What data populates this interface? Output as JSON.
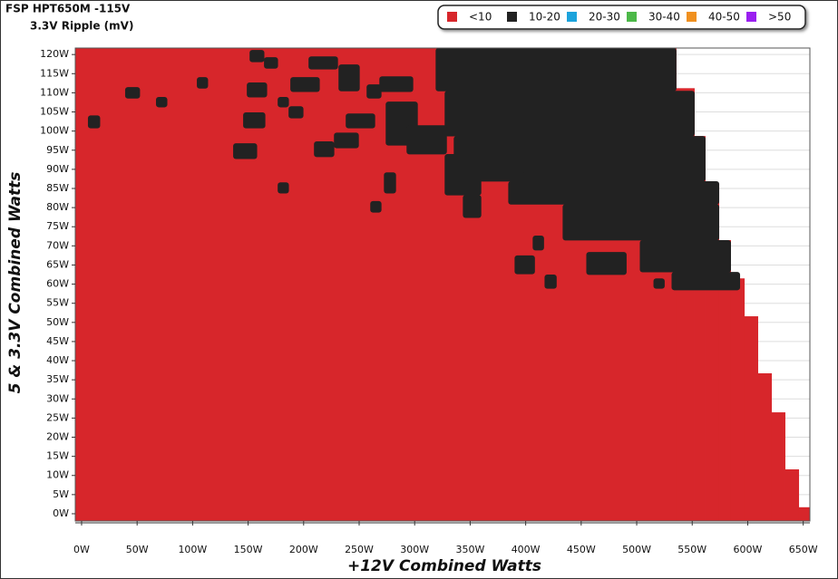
{
  "chart_data": {
    "type": "heatmap",
    "title": "FSP HPT650M -115V",
    "subtitle": "3.3V Ripple (mV)",
    "x_label": "+12V Combined Watts",
    "y_label": "5 & 3.3V Combined Watts",
    "xlim": [
      -5.7,
      656
    ],
    "ylim": [
      -1.9,
      121.7
    ],
    "grid": true,
    "xticks": [
      {
        "value": 0,
        "label": "0W"
      },
      {
        "value": 50,
        "label": "50W"
      },
      {
        "value": 100,
        "label": "100W"
      },
      {
        "value": 150,
        "label": "150W"
      },
      {
        "value": 200,
        "label": "200W"
      },
      {
        "value": 250,
        "label": "250W"
      },
      {
        "value": 300,
        "label": "300W"
      },
      {
        "value": 350,
        "label": "350W"
      },
      {
        "value": 400,
        "label": "400W"
      },
      {
        "value": 450,
        "label": "450W"
      },
      {
        "value": 500,
        "label": "500W"
      },
      {
        "value": 550,
        "label": "550W"
      },
      {
        "value": 600,
        "label": "600W"
      },
      {
        "value": 650,
        "label": "650W"
      }
    ],
    "yticks": [
      {
        "value": 0,
        "label": "0W"
      },
      {
        "value": 5,
        "label": "5W"
      },
      {
        "value": 10,
        "label": "10W"
      },
      {
        "value": 15,
        "label": "15W"
      },
      {
        "value": 20,
        "label": "20W"
      },
      {
        "value": 25,
        "label": "25W"
      },
      {
        "value": 30,
        "label": "30W"
      },
      {
        "value": 35,
        "label": "35W"
      },
      {
        "value": 40,
        "label": "40W"
      },
      {
        "value": 45,
        "label": "45W"
      },
      {
        "value": 50,
        "label": "50W"
      },
      {
        "value": 55,
        "label": "55W"
      },
      {
        "value": 60,
        "label": "60W"
      },
      {
        "value": 65,
        "label": "65W"
      },
      {
        "value": 70,
        "label": "70W"
      },
      {
        "value": 75,
        "label": "75W"
      },
      {
        "value": 80,
        "label": "80W"
      },
      {
        "value": 85,
        "label": "85W"
      },
      {
        "value": 90,
        "label": "90W"
      },
      {
        "value": 95,
        "label": "95W"
      },
      {
        "value": 100,
        "label": "100W"
      },
      {
        "value": 105,
        "label": "105W"
      },
      {
        "value": 110,
        "label": "110W"
      },
      {
        "value": 115,
        "label": "115W"
      },
      {
        "value": 120,
        "label": "120W"
      }
    ],
    "series": [
      {
        "name": "<10",
        "color": "#d7262b",
        "cells": [
          [
            -5.7,
            535.5,
            -1.9,
            121.7
          ],
          [
            535.5,
            551.9,
            -1.9,
            111.2
          ],
          [
            551.9,
            561.7,
            -1.9,
            98.7
          ],
          [
            561.7,
            574,
            -1.9,
            86.2
          ],
          [
            574,
            584.6,
            -1.9,
            71.5
          ],
          [
            584.6,
            596.9,
            -1.9,
            61.5
          ],
          [
            596.9,
            609.1,
            -1.9,
            51.6
          ],
          [
            609.1,
            621.4,
            -1.9,
            36.7
          ],
          [
            621.4,
            633.6,
            -1.9,
            26.5
          ],
          [
            633.6,
            645.9,
            -1.9,
            11.6
          ],
          [
            645.9,
            656,
            -1.9,
            1.7
          ]
        ]
      },
      {
        "name": "10-20",
        "color": "#222222",
        "cells": [
          [
            318.9,
            535.5,
            110.5,
            121.7
          ],
          [
            327,
            551.9,
            98.7,
            110.5
          ],
          [
            335.2,
            561.7,
            86.9,
            98.7
          ],
          [
            384.3,
            574,
            80.9,
            86.9
          ],
          [
            433.3,
            574,
            71.5,
            80.9
          ],
          [
            502.8,
            584.6,
            63.2,
            71.5
          ],
          [
            531.4,
            592.8,
            58.5,
            63.2
          ],
          [
            327,
            359.7,
            83.3,
            94
          ],
          [
            343.4,
            359.7,
            77.4,
            83.3
          ],
          [
            396.5,
            425.2,
            82.1,
            89.2
          ],
          [
            5.7,
            16.4,
            100.8,
            104.1
          ],
          [
            39.2,
            52.3,
            108.6,
            111.5
          ],
          [
            67,
            76.9,
            106.3,
            108.9
          ],
          [
            103.8,
            113.6,
            111.2,
            114.1
          ],
          [
            136.5,
            157.8,
            92.8,
            96.8
          ],
          [
            145.5,
            165.2,
            100.8,
            104.9
          ],
          [
            148.8,
            166.8,
            108.9,
            112.7
          ],
          [
            151.3,
            164.3,
            118.1,
            121.2
          ],
          [
            164.3,
            176.6,
            116.4,
            119.3
          ],
          [
            176.6,
            186.4,
            83.8,
            86.6
          ],
          [
            176.6,
            186.4,
            106.3,
            108.9
          ],
          [
            186.4,
            199.5,
            103.4,
            106.5
          ],
          [
            188,
            214.2,
            110.3,
            114.1
          ],
          [
            204.4,
            230.6,
            116.2,
            119.5
          ],
          [
            209.3,
            227.3,
            93.3,
            97.3
          ],
          [
            227.3,
            249.4,
            95.6,
            99.6
          ],
          [
            231.4,
            250.2,
            110.5,
            117.4
          ],
          [
            237.9,
            264.1,
            100.8,
            104.6
          ],
          [
            256.7,
            269.8,
            108.6,
            112.2
          ],
          [
            260,
            269.8,
            78.8,
            81.7
          ],
          [
            268.2,
            298.4,
            110.3,
            114.3
          ],
          [
            272.3,
            282.9,
            83.8,
            89.2
          ],
          [
            273.9,
            302.5,
            96.3,
            107.7
          ],
          [
            292.7,
            328.7,
            94,
            101.5
          ],
          [
            390,
            408,
            62.7,
            67.5
          ],
          [
            406.3,
            416.2,
            68.9,
            72.7
          ],
          [
            417,
            427.6,
            58.9,
            62.5
          ],
          [
            454.6,
            490.6,
            62.5,
            68.4
          ],
          [
            515.1,
            524.9,
            58.9,
            61.5
          ]
        ]
      },
      {
        "name": "20-30",
        "color": "#1ca3dc",
        "cells": []
      },
      {
        "name": "30-40",
        "color": "#4cb848",
        "cells": []
      },
      {
        "name": "40-50",
        "color": "#f0901f",
        "cells": []
      },
      {
        "name": ">50",
        "color": "#9a1ff0",
        "cells": []
      }
    ]
  }
}
